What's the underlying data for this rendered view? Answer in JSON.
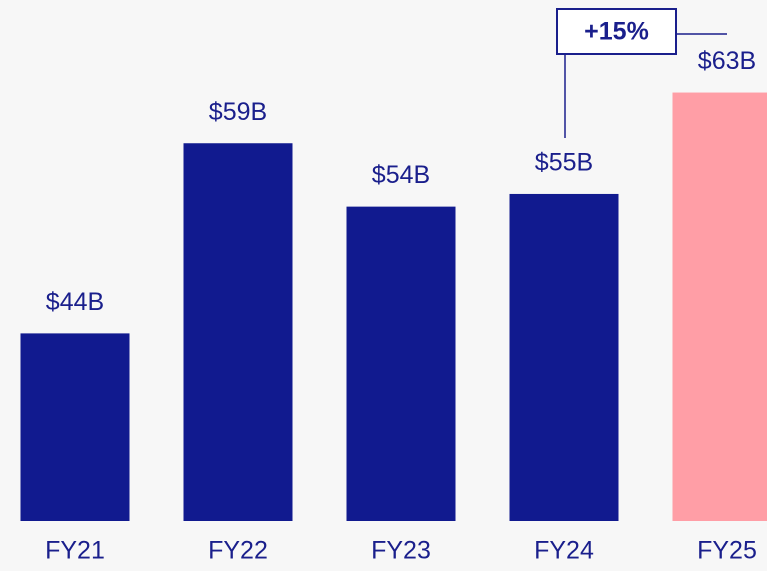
{
  "chart_data": {
    "type": "bar",
    "categories": [
      "FY21",
      "FY22",
      "FY23",
      "FY24",
      "FY25"
    ],
    "values": [
      44,
      59,
      54,
      55,
      63
    ],
    "value_labels": [
      "$44B",
      "$59B",
      "$54B",
      "$55B",
      "$63B"
    ],
    "colors": [
      "#111a8f",
      "#111a8f",
      "#111a8f",
      "#111a8f",
      "#ff9ea6"
    ],
    "ylim": [
      29.2,
      70.3
    ],
    "annotation": "+15%"
  }
}
